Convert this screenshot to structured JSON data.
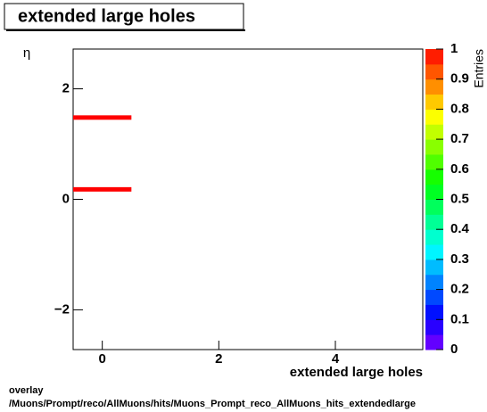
{
  "chart_data": {
    "type": "heatmap",
    "title": "extended large holes",
    "x_label": "extended large holes",
    "y_label": "η",
    "z_label": "Entries",
    "xlim": [
      -0.5,
      5.5
    ],
    "ylim": [
      -2.72,
      2.72
    ],
    "zlim": [
      0,
      1
    ],
    "xticks": [
      0,
      2,
      4
    ],
    "yticks": [
      {
        "value": -2,
        "label": "−2"
      },
      0,
      2
    ],
    "zticks": [
      0,
      0.1,
      0.2,
      0.3,
      0.4,
      0.5,
      0.6,
      0.7,
      0.8,
      0.9,
      1
    ],
    "cells": [
      {
        "x": [
          -0.5,
          0.5
        ],
        "y": [
          1.44,
          1.52
        ],
        "value": 1
      },
      {
        "x": [
          -0.5,
          0.5
        ],
        "y": [
          0.14,
          0.22
        ],
        "value": 1
      }
    ],
    "footer": [
      "overlay",
      "/Muons/Prompt/reco/AllMuons/hits/Muons_Prompt_reco_AllMuons_hits_extendedlarge"
    ]
  }
}
